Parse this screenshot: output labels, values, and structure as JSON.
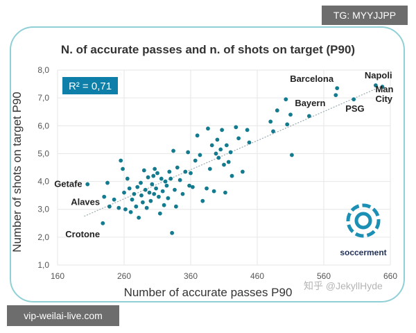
{
  "tags": {
    "top": "TG: MYYJJPP",
    "bottom": "vip-weilai-live.com",
    "watermark": "知乎 @JekyllHyde"
  },
  "logo": {
    "text": "soccerment",
    "icon": "soccer-ball-logo-icon"
  },
  "colors": {
    "point": "#147a8e",
    "trend": "#9aaab0",
    "badge": "#0e7fa8",
    "grid": "#e6e6e6",
    "frame": "#8fd0d6"
  },
  "chart_data": {
    "type": "scatter",
    "title": "N. of accurate passes and n. of shots on target (P90)",
    "xlabel": "Number of accurate passes P90",
    "ylabel": "Number of shots on target P90",
    "xlim": [
      160,
      660
    ],
    "ylim": [
      1.0,
      8.0
    ],
    "xticks": [
      "160",
      "260",
      "360",
      "460",
      "560",
      "660"
    ],
    "yticks": [
      "1,0",
      "2,0",
      "3,0",
      "4,0",
      "5,0",
      "6,0",
      "7,0",
      "8,0"
    ],
    "grid": true,
    "r2_label": "R² = 0,71",
    "trendline": {
      "x": [
        200,
        650
      ],
      "y": [
        2.75,
        7.45
      ]
    },
    "annotations": [
      {
        "text": "Getafe",
        "x": 205,
        "y": 3.9
      },
      {
        "text": "Alaves",
        "x": 230,
        "y": 3.45
      },
      {
        "text": "Crotone",
        "x": 228,
        "y": 2.5
      },
      {
        "text": "Barcelona",
        "x": 580,
        "y": 7.35
      },
      {
        "text": "Napoli",
        "x": 638,
        "y": 7.45
      },
      {
        "text": "Bayern",
        "x": 577,
        "y": 7.1
      },
      {
        "text": "PSG",
        "x": 605,
        "y": 6.95
      },
      {
        "text": "Man",
        "x": 648,
        "y": 7.45
      },
      {
        "text": "City",
        "x": 648,
        "y": 7.45
      }
    ],
    "points": [
      [
        205,
        3.9
      ],
      [
        230,
        3.45
      ],
      [
        228,
        2.5
      ],
      [
        235,
        3.95
      ],
      [
        238,
        3.1
      ],
      [
        245,
        3.35
      ],
      [
        252,
        3.05
      ],
      [
        255,
        4.75
      ],
      [
        258,
        4.45
      ],
      [
        260,
        3.6
      ],
      [
        262,
        3.0
      ],
      [
        265,
        4.1
      ],
      [
        268,
        3.75
      ],
      [
        270,
        2.9
      ],
      [
        272,
        3.35
      ],
      [
        275,
        3.55
      ],
      [
        278,
        3.1
      ],
      [
        280,
        3.8
      ],
      [
        282,
        2.7
      ],
      [
        285,
        3.95
      ],
      [
        286,
        3.5
      ],
      [
        288,
        3.25
      ],
      [
        290,
        4.4
      ],
      [
        292,
        3.7
      ],
      [
        294,
        3.05
      ],
      [
        296,
        4.15
      ],
      [
        298,
        3.6
      ],
      [
        300,
        3.3
      ],
      [
        302,
        3.9
      ],
      [
        304,
        4.2
      ],
      [
        305,
        3.55
      ],
      [
        306,
        4.45
      ],
      [
        308,
        3.75
      ],
      [
        310,
        4.3
      ],
      [
        312,
        3.45
      ],
      [
        314,
        2.85
      ],
      [
        316,
        4.1
      ],
      [
        318,
        3.65
      ],
      [
        320,
        3.15
      ],
      [
        322,
        4.0
      ],
      [
        324,
        3.85
      ],
      [
        326,
        3.4
      ],
      [
        328,
        4.35
      ],
      [
        330,
        4.1
      ],
      [
        332,
        2.15
      ],
      [
        334,
        5.1
      ],
      [
        336,
        3.7
      ],
      [
        338,
        3.1
      ],
      [
        340,
        4.5
      ],
      [
        344,
        4.05
      ],
      [
        348,
        3.55
      ],
      [
        352,
        4.35
      ],
      [
        356,
        5.05
      ],
      [
        358,
        3.85
      ],
      [
        360,
        4.3
      ],
      [
        363,
        3.8
      ],
      [
        367,
        4.75
      ],
      [
        370,
        5.65
      ],
      [
        374,
        4.95
      ],
      [
        378,
        3.3
      ],
      [
        384,
        3.75
      ],
      [
        386,
        5.9
      ],
      [
        389,
        4.45
      ],
      [
        392,
        5.3
      ],
      [
        395,
        3.65
      ],
      [
        398,
        5.0
      ],
      [
        400,
        5.5
      ],
      [
        402,
        4.85
      ],
      [
        405,
        5.15
      ],
      [
        407,
        5.85
      ],
      [
        410,
        4.6
      ],
      [
        412,
        3.6
      ],
      [
        414,
        5.3
      ],
      [
        417,
        4.7
      ],
      [
        420,
        5.05
      ],
      [
        422,
        4.2
      ],
      [
        428,
        5.95
      ],
      [
        432,
        5.55
      ],
      [
        438,
        4.35
      ],
      [
        445,
        5.85
      ],
      [
        448,
        5.4
      ],
      [
        480,
        6.15
      ],
      [
        484,
        5.8
      ],
      [
        490,
        6.55
      ],
      [
        503,
        6.95
      ],
      [
        505,
        6.05
      ],
      [
        510,
        6.4
      ],
      [
        512,
        4.95
      ],
      [
        538,
        6.35
      ],
      [
        578,
        7.1
      ],
      [
        580,
        7.35
      ],
      [
        605,
        6.95
      ],
      [
        638,
        7.45
      ],
      [
        648,
        7.4
      ]
    ]
  }
}
